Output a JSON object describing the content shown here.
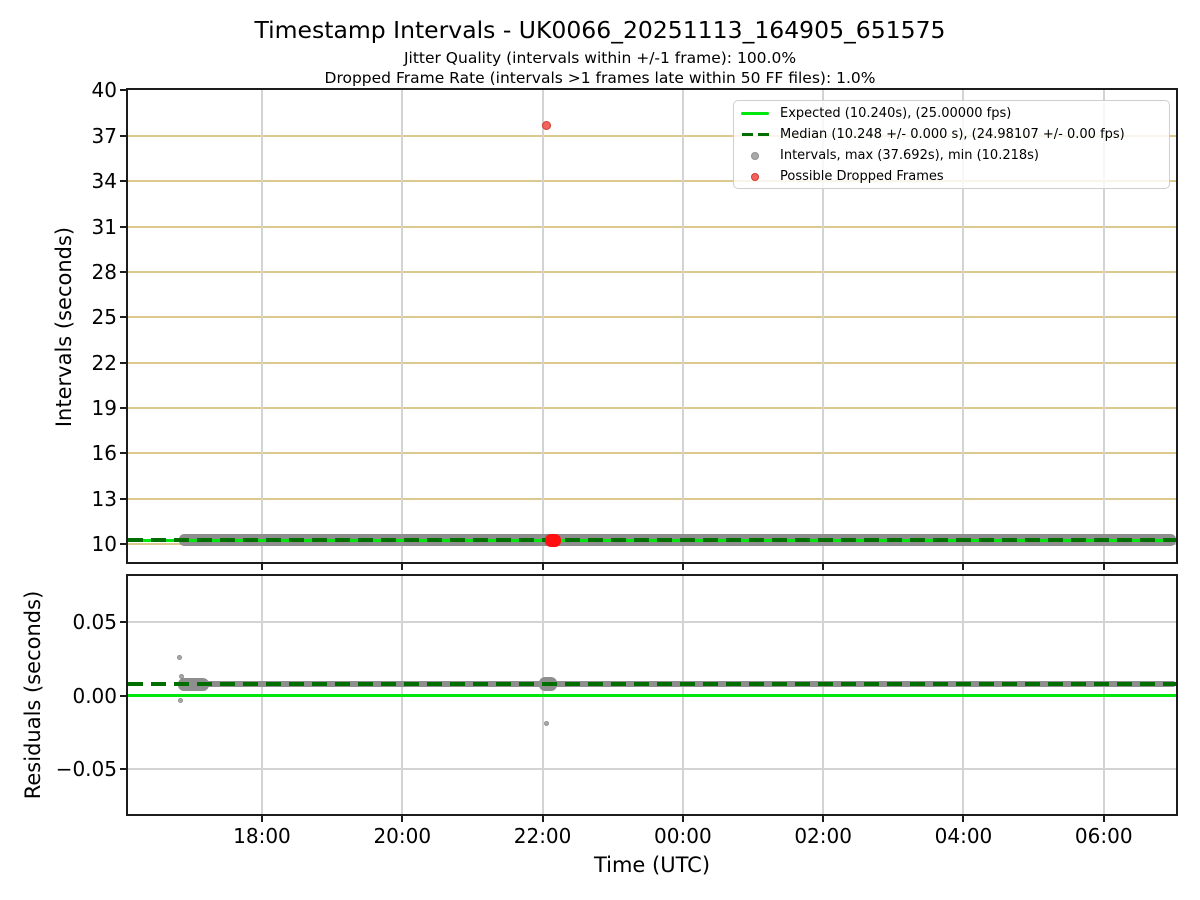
{
  "figure": {
    "title": "Timestamp Intervals - UK0066_20251113_164905_651575",
    "subtitle_line1": "Jitter Quality (intervals within +/-1 frame): 100.0%",
    "subtitle_line2": "Dropped Frame Rate (intervals >1 frames late within 50 FF files): 1.0%"
  },
  "legend": {
    "items": [
      {
        "swatch": "line-solid",
        "label": "Expected (10.240s), (25.00000 fps)"
      },
      {
        "swatch": "line-dashed",
        "label": "Median (10.248 +/- 0.000 s), (24.98107 +/- 0.00 fps)"
      },
      {
        "swatch": "dot-gray",
        "label": "Intervals, max (37.692s), min (10.218s)"
      },
      {
        "swatch": "dot-red",
        "label": "Possible Dropped Frames"
      }
    ]
  },
  "colors": {
    "expected_line": "#00e70e",
    "median_line": "#006f00",
    "interval_markers": "#8e8e8e",
    "dropped_frame_markers": "#f2655e",
    "dropped_frame_cluster": "#ff0f0f",
    "grid_horizontal_top": "#dcc98d",
    "grid_vertical": "#d3d3d3",
    "spine": "#1c1c1c"
  },
  "chart_data": [
    {
      "type": "scatter",
      "panel": "intervals",
      "title": "Timestamp Intervals - UK0066_20251113_164905_651575",
      "ylabel": "Intervals (seconds)",
      "ylim": [
        8.81,
        40.03
      ],
      "yticks": [
        {
          "value": 10,
          "label": "10"
        },
        {
          "value": 13,
          "label": "13"
        },
        {
          "value": 16,
          "label": "16"
        },
        {
          "value": 19,
          "label": "19"
        },
        {
          "value": 22,
          "label": "22"
        },
        {
          "value": 25,
          "label": "25"
        },
        {
          "value": 28,
          "label": "28"
        },
        {
          "value": 31,
          "label": "31"
        },
        {
          "value": 34,
          "label": "34"
        },
        {
          "value": 37,
          "label": "37"
        },
        {
          "value": 40,
          "label": "40"
        }
      ],
      "xlim_hours_utc": [
        16.09,
        31.03
      ],
      "xticks": [
        {
          "hour": 18,
          "label": "18:00"
        },
        {
          "hour": 20,
          "label": "20:00"
        },
        {
          "hour": 22,
          "label": "22:00"
        },
        {
          "hour": 24,
          "label": "00:00"
        },
        {
          "hour": 26,
          "label": "02:00"
        },
        {
          "hour": 28,
          "label": "04:00"
        },
        {
          "hour": 30,
          "label": "06:00"
        }
      ],
      "grid": true,
      "legend_position": "upper right",
      "series": [
        {
          "name": "Expected (10.240s), (25.00000 fps)",
          "type": "hline",
          "style": "solid",
          "value": 10.24
        },
        {
          "name": "Median (10.248 +/- 0.000 s), (24.98107 +/- 0.00 fps)",
          "type": "hline",
          "style": "dashed",
          "value": 10.248
        },
        {
          "name": "Intervals, max (37.692s), min (10.218s)",
          "type": "scatter-band",
          "start_hour": 16.82,
          "end_hour": 31.03,
          "center": 10.248,
          "spread_seconds": 0.4,
          "max": 37.692,
          "min": 10.218,
          "outlier_points": [
            {
              "hour": 22.05,
              "value": 37.692
            }
          ]
        },
        {
          "name": "Possible Dropped Frames",
          "type": "scatter-cluster",
          "start_hour": 22.03,
          "end_hour": 22.26,
          "value": 10.24
        }
      ]
    },
    {
      "type": "scatter",
      "panel": "residuals",
      "ylabel": "Residuals (seconds)",
      "xlabel": "Time (UTC)",
      "ylim": [
        -0.0806,
        0.0817
      ],
      "yticks": [
        {
          "value": 0.05,
          "label": "0.05"
        },
        {
          "value": 0.0,
          "label": "0.00"
        },
        {
          "value": -0.05,
          "label": "−0.05"
        }
      ],
      "xlim_hours_utc": [
        16.09,
        31.03
      ],
      "xticks": [
        {
          "hour": 18,
          "label": "18:00"
        },
        {
          "hour": 20,
          "label": "20:00"
        },
        {
          "hour": 22,
          "label": "22:00"
        },
        {
          "hour": 24,
          "label": "00:00"
        },
        {
          "hour": 26,
          "label": "02:00"
        },
        {
          "hour": 28,
          "label": "04:00"
        },
        {
          "hour": 30,
          "label": "06:00"
        }
      ],
      "grid": true,
      "series": [
        {
          "name": "expected-residual",
          "type": "hline",
          "style": "solid",
          "value": 0.0
        },
        {
          "name": "median-residual",
          "type": "hline",
          "style": "dashed",
          "value": 0.008
        },
        {
          "name": "residual-band",
          "type": "scatter-band",
          "start_hour": 16.82,
          "end_hour": 31.03,
          "center": 0.008,
          "spread_seconds": 0.002,
          "blobs": [
            {
              "start_hour": 16.8,
              "end_hour": 17.25,
              "center": 0.008,
              "spread_seconds": 0.0044
            },
            {
              "start_hour": 21.95,
              "end_hour": 22.2,
              "center": 0.008,
              "spread_seconds": 0.0048
            }
          ],
          "outlier_points": [
            {
              "hour": 16.83,
              "value": 0.026
            },
            {
              "hour": 16.85,
              "value": 0.013
            },
            {
              "hour": 16.84,
              "value": -0.003
            },
            {
              "hour": 22.05,
              "value": -0.019
            }
          ]
        }
      ]
    }
  ]
}
